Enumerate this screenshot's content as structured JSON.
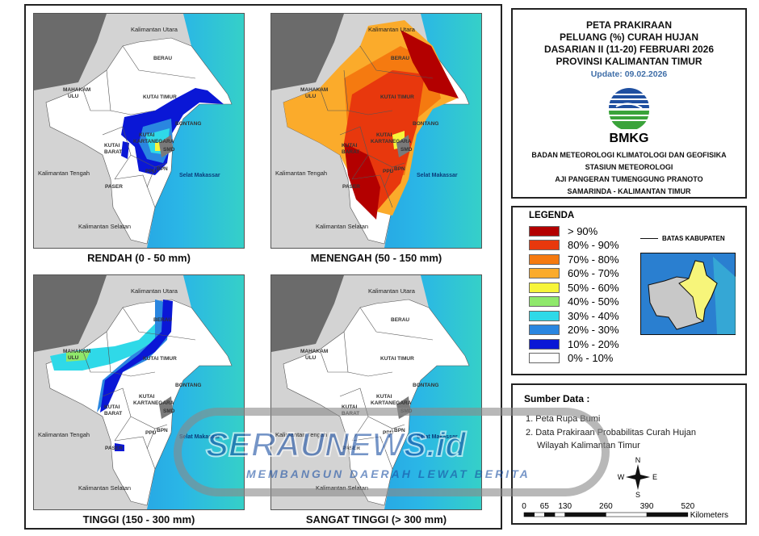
{
  "panels": [
    {
      "title": "RENDAH (0 - 50 mm)",
      "overlay": "rendah"
    },
    {
      "title": "MENENGAH (50 - 150 mm)",
      "overlay": "menengah"
    },
    {
      "title": "TINGGI (150 - 300 mm)",
      "overlay": "tinggi"
    },
    {
      "title": "SANGAT TINGGI (> 300 mm)",
      "overlay": "none"
    }
  ],
  "map_labels": {
    "kaltara": "Kalimantan Utara",
    "berau": "BERAU",
    "mahakam1": "MAHAKAM",
    "mahakam2": "ULU",
    "kutim": "KUTAI TIMUR",
    "bontang": "BONTANG",
    "kukar1": "KUTAI",
    "kukar2": "KARTANEGARA",
    "kubar1": "KUTAI",
    "kubar2": "BARAT",
    "smd": "SMD",
    "bpn": "BPN",
    "ppu": "PPU",
    "paser": "PASER",
    "kalteng": "Kalimantan Tengah",
    "kalsel": "Kalimantan Selatan",
    "selat": "Selat Makassar"
  },
  "header": {
    "title_lines": [
      "PETA PRAKIRAAN",
      "PELUANG (%) CURAH HUJAN",
      "DASARIAN II (11-20) FEBRUARI 2026",
      "PROVINSI KALIMANTAN TIMUR"
    ],
    "update": "Update: 09.02.2026",
    "logo_text": "BMKG",
    "org_lines": [
      "BADAN METEOROLOGI KLIMATOLOGI DAN GEOFISIKA",
      "STASIUN METEOROLOGI",
      "AJI PANGERAN TUMENGGUNG PRANOTO",
      "SAMARINDA - KALIMANTAN TIMUR"
    ]
  },
  "legend": {
    "title": "LEGENDA",
    "boundary_label": "BATAS KABUPATEN",
    "items": [
      {
        "label": "> 90%",
        "color": "#b30000"
      },
      {
        "label": "80% - 90%",
        "color": "#e8380d"
      },
      {
        "label": "70% - 80%",
        "color": "#f57a10"
      },
      {
        "label": "60% - 70%",
        "color": "#fbab2b"
      },
      {
        "label": "50% - 60%",
        "color": "#f7f53a"
      },
      {
        "label": "40% - 50%",
        "color": "#8fe86b"
      },
      {
        "label": "30% - 40%",
        "color": "#2fd9e8"
      },
      {
        "label": "20% - 30%",
        "color": "#2a86e0"
      },
      {
        "label": "10% - 20%",
        "color": "#0a17d6"
      },
      {
        "label": "0% - 10%",
        "color": "#ffffff"
      }
    ]
  },
  "sources": {
    "title": "Sumber Data :",
    "items": [
      "1. Peta Rupa Bumi",
      "2. Data Prakiraan Probabilitas Curah Hujan",
      "Wilayah Kalimantan Timur"
    ]
  },
  "compass": {
    "n": "N",
    "s": "S",
    "e": "E",
    "w": "W"
  },
  "scale": {
    "ticks": [
      "0",
      "65",
      "130",
      "260",
      "390",
      "520"
    ],
    "unit": "Kilometers"
  },
  "watermark": {
    "brand": "SERAUNEWS.id",
    "tagline": "MEMBANGUN DAERAH LEWAT BERITA"
  }
}
